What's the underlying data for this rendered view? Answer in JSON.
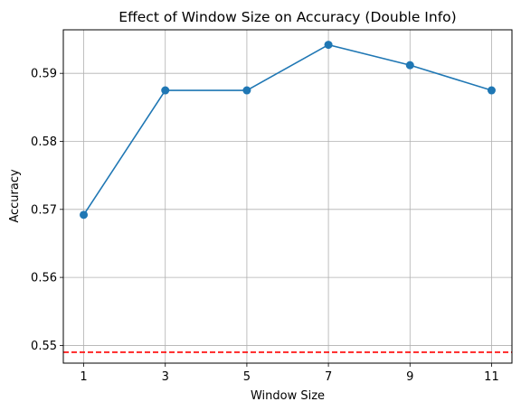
{
  "chart_data": {
    "type": "line",
    "title": "Effect of Window Size on Accuracy (Double Info)",
    "xlabel": "Window Size",
    "ylabel": "Accuracy",
    "x": [
      1,
      3,
      5,
      7,
      9,
      11
    ],
    "x_tick_labels": [
      "1",
      "3",
      "5",
      "7",
      "9",
      "11"
    ],
    "y_ticks": [
      0.55,
      0.56,
      0.57,
      0.58,
      0.59
    ],
    "y_tick_labels": [
      "0.55",
      "0.56",
      "0.57",
      "0.58",
      "0.59"
    ],
    "xlim": [
      0.5,
      11.5
    ],
    "ylim": [
      0.5474,
      0.5964
    ],
    "grid": true,
    "series": [
      {
        "values": [
          0.5692,
          0.5875,
          0.5875,
          0.5942,
          0.5912,
          0.5875
        ],
        "color": "#1f77b4",
        "marker": "circle"
      }
    ],
    "reference_line": {
      "y": 0.549,
      "color": "#ff0000",
      "style": "dashed"
    }
  }
}
